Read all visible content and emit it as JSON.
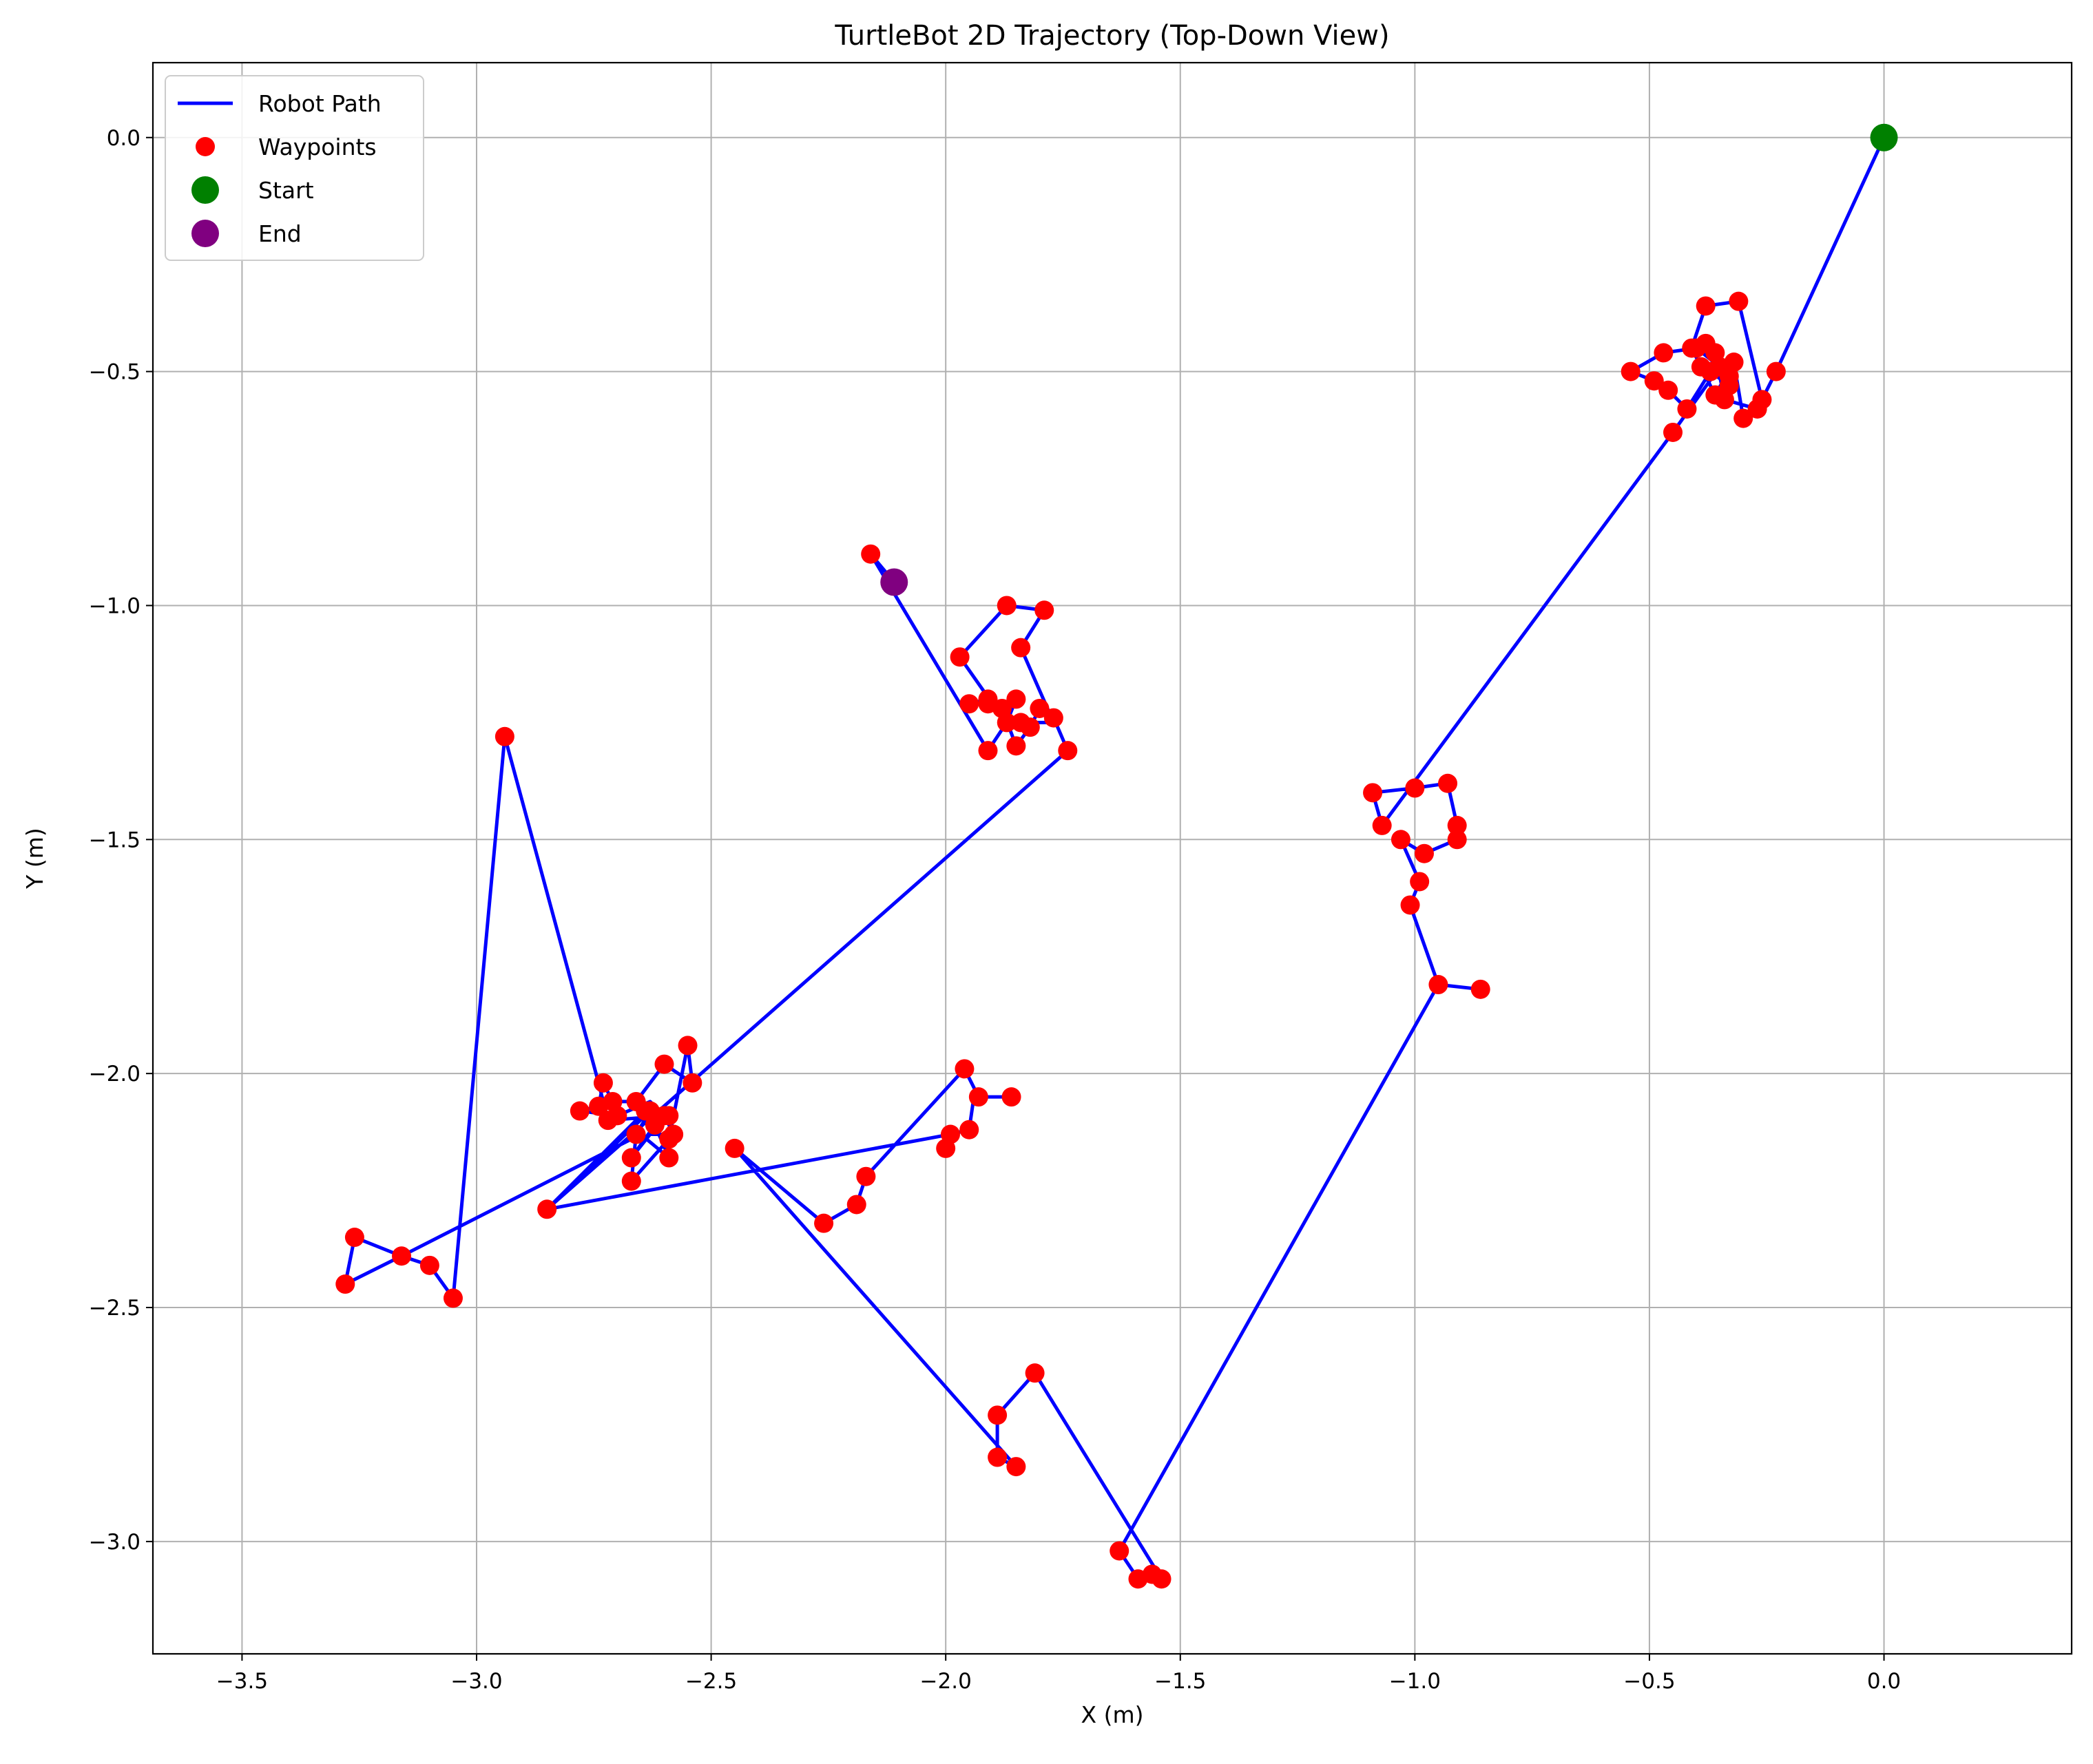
{
  "chart_data": {
    "type": "scatter",
    "title": "TurtleBot 2D Trajectory (Top-Down View)",
    "xlabel": "X (m)",
    "ylabel": "Y (m)",
    "xlim": [
      -3.69,
      0.4
    ],
    "ylim": [
      -3.24,
      0.16
    ],
    "xticks": [
      -3.5,
      -3.0,
      -2.5,
      -2.0,
      -1.5,
      -1.0,
      -0.5,
      0.0
    ],
    "yticks": [
      0.0,
      -0.5,
      -1.0,
      -1.5,
      -2.0,
      -2.5,
      -3.0
    ],
    "xtick_labels": [
      "−3.5",
      "−3.0",
      "−2.5",
      "−2.0",
      "−1.5",
      "−1.0",
      "−0.5",
      "0.0"
    ],
    "ytick_labels": [
      "0.0",
      "−0.5",
      "−1.0",
      "−1.5",
      "−2.0",
      "−2.5",
      "−3.0"
    ],
    "grid": true,
    "legend_position": "top-left",
    "legend": [
      "Robot Path",
      "Waypoints",
      "Start",
      "End"
    ],
    "colors": {
      "path": "#0000ff",
      "waypoints": "#ff0000",
      "start": "#008000",
      "end": "#800080"
    },
    "series": [
      {
        "name": "Robot Path",
        "type": "line",
        "points": [
          [
            0.0,
            0.0
          ],
          [
            -0.23,
            -0.5
          ],
          [
            -0.26,
            -0.56
          ],
          [
            -0.31,
            -0.35
          ],
          [
            -0.38,
            -0.36
          ],
          [
            -0.41,
            -0.45
          ],
          [
            -0.36,
            -0.55
          ],
          [
            -0.32,
            -0.48
          ],
          [
            -0.3,
            -0.6
          ],
          [
            -0.27,
            -0.58
          ],
          [
            -0.34,
            -0.56
          ],
          [
            -0.36,
            -0.46
          ],
          [
            -0.38,
            -0.44
          ],
          [
            -0.33,
            -0.53
          ],
          [
            -0.37,
            -0.5
          ],
          [
            -0.42,
            -0.58
          ],
          [
            -0.46,
            -0.54
          ],
          [
            -0.49,
            -0.52
          ],
          [
            -0.54,
            -0.5
          ],
          [
            -0.47,
            -0.46
          ],
          [
            -0.4,
            -0.45
          ],
          [
            -0.35,
            -0.49
          ],
          [
            -0.45,
            -0.63
          ],
          [
            -1.07,
            -1.47
          ],
          [
            -1.09,
            -1.4
          ],
          [
            -1.0,
            -1.39
          ],
          [
            -0.93,
            -1.38
          ],
          [
            -0.91,
            -1.47
          ],
          [
            -0.91,
            -1.5
          ],
          [
            -0.98,
            -1.53
          ],
          [
            -1.03,
            -1.5
          ],
          [
            -0.99,
            -1.59
          ],
          [
            -1.01,
            -1.64
          ],
          [
            -0.95,
            -1.81
          ],
          [
            -0.86,
            -1.82
          ],
          [
            -0.95,
            -1.81
          ],
          [
            -1.63,
            -3.02
          ],
          [
            -1.59,
            -3.08
          ],
          [
            -1.56,
            -3.07
          ],
          [
            -1.54,
            -3.08
          ],
          [
            -1.81,
            -2.64
          ],
          [
            -1.89,
            -2.73
          ],
          [
            -1.89,
            -2.82
          ],
          [
            -1.85,
            -2.84
          ],
          [
            -2.45,
            -2.16
          ],
          [
            -2.26,
            -2.32
          ],
          [
            -2.19,
            -2.28
          ],
          [
            -2.17,
            -2.22
          ],
          [
            -1.96,
            -1.99
          ],
          [
            -1.93,
            -2.05
          ],
          [
            -1.86,
            -2.05
          ],
          [
            -1.94,
            -2.05
          ],
          [
            -1.95,
            -2.12
          ],
          [
            -1.99,
            -2.13
          ],
          [
            -2.0,
            -2.16
          ],
          [
            -1.99,
            -2.13
          ],
          [
            -2.85,
            -2.29
          ],
          [
            -2.63,
            -2.08
          ],
          [
            -2.66,
            -2.13
          ],
          [
            -2.67,
            -2.23
          ],
          [
            -2.59,
            -2.14
          ],
          [
            -2.55,
            -1.94
          ],
          [
            -2.54,
            -2.02
          ],
          [
            -2.6,
            -1.98
          ],
          [
            -2.66,
            -2.06
          ],
          [
            -2.71,
            -2.06
          ],
          [
            -2.73,
            -2.02
          ],
          [
            -2.74,
            -2.07
          ],
          [
            -2.78,
            -2.08
          ],
          [
            -2.7,
            -2.09
          ],
          [
            -2.63,
            -2.06
          ],
          [
            -2.6,
            -2.09
          ],
          [
            -2.58,
            -2.13
          ],
          [
            -2.63,
            -2.13
          ],
          [
            -2.67,
            -2.18
          ],
          [
            -2.62,
            -2.11
          ],
          [
            -2.59,
            -2.18
          ],
          [
            -2.65,
            -2.13
          ],
          [
            -3.16,
            -2.39
          ],
          [
            -3.1,
            -2.41
          ],
          [
            -3.16,
            -2.39
          ],
          [
            -3.28,
            -2.45
          ],
          [
            -3.26,
            -2.35
          ],
          [
            -3.16,
            -2.39
          ],
          [
            -3.1,
            -2.41
          ],
          [
            -3.05,
            -2.48
          ],
          [
            -2.94,
            -1.28
          ],
          [
            -2.74,
            -2.02
          ],
          [
            -2.72,
            -2.1
          ],
          [
            -2.59,
            -2.09
          ],
          [
            -2.64,
            -2.08
          ],
          [
            -2.85,
            -2.29
          ],
          [
            -1.74,
            -1.31
          ],
          [
            -1.77,
            -1.24
          ],
          [
            -1.8,
            -1.22
          ],
          [
            -1.82,
            -1.26
          ],
          [
            -1.85,
            -1.3
          ],
          [
            -1.88,
            -1.22
          ],
          [
            -1.85,
            -1.2
          ],
          [
            -1.87,
            -1.25
          ],
          [
            -1.91,
            -1.21
          ],
          [
            -1.95,
            -1.21
          ],
          [
            -1.91,
            -1.2
          ],
          [
            -1.87,
            -1.24
          ],
          [
            -1.84,
            -1.25
          ],
          [
            -1.77,
            -1.25
          ],
          [
            -1.84,
            -1.09
          ],
          [
            -1.79,
            -1.01
          ],
          [
            -1.87,
            -1.0
          ],
          [
            -1.97,
            -1.11
          ],
          [
            -1.9,
            -1.21
          ],
          [
            -1.87,
            -1.25
          ],
          [
            -1.91,
            -1.31
          ],
          [
            -2.16,
            -0.89
          ],
          [
            -2.11,
            -0.95
          ]
        ]
      },
      {
        "name": "Waypoints",
        "type": "scatter",
        "points": [
          [
            -0.23,
            -0.5
          ],
          [
            -0.26,
            -0.56
          ],
          [
            -0.31,
            -0.35
          ],
          [
            -0.38,
            -0.36
          ],
          [
            -0.41,
            -0.45
          ],
          [
            -0.36,
            -0.55
          ],
          [
            -0.32,
            -0.48
          ],
          [
            -0.3,
            -0.6
          ],
          [
            -0.27,
            -0.58
          ],
          [
            -0.34,
            -0.56
          ],
          [
            -0.36,
            -0.46
          ],
          [
            -0.38,
            -0.44
          ],
          [
            -0.33,
            -0.53
          ],
          [
            -0.37,
            -0.5
          ],
          [
            -0.42,
            -0.58
          ],
          [
            -0.46,
            -0.54
          ],
          [
            -0.49,
            -0.52
          ],
          [
            -0.54,
            -0.5
          ],
          [
            -0.47,
            -0.46
          ],
          [
            -0.4,
            -0.45
          ],
          [
            -0.35,
            -0.49
          ],
          [
            -0.45,
            -0.63
          ],
          [
            -0.33,
            -0.51
          ],
          [
            -0.39,
            -0.49
          ],
          [
            -1.07,
            -1.47
          ],
          [
            -1.09,
            -1.4
          ],
          [
            -1.0,
            -1.39
          ],
          [
            -0.93,
            -1.38
          ],
          [
            -0.91,
            -1.47
          ],
          [
            -0.91,
            -1.5
          ],
          [
            -0.98,
            -1.53
          ],
          [
            -1.03,
            -1.5
          ],
          [
            -0.99,
            -1.59
          ],
          [
            -1.01,
            -1.64
          ],
          [
            -0.95,
            -1.81
          ],
          [
            -0.86,
            -1.82
          ],
          [
            -1.63,
            -3.02
          ],
          [
            -1.59,
            -3.08
          ],
          [
            -1.56,
            -3.07
          ],
          [
            -1.54,
            -3.08
          ],
          [
            -1.81,
            -2.64
          ],
          [
            -1.89,
            -2.73
          ],
          [
            -1.89,
            -2.82
          ],
          [
            -1.85,
            -2.84
          ],
          [
            -2.45,
            -2.16
          ],
          [
            -2.26,
            -2.32
          ],
          [
            -2.19,
            -2.28
          ],
          [
            -2.17,
            -2.22
          ],
          [
            -1.96,
            -1.99
          ],
          [
            -1.93,
            -2.05
          ],
          [
            -1.86,
            -2.05
          ],
          [
            -1.95,
            -2.12
          ],
          [
            -1.99,
            -2.13
          ],
          [
            -2.0,
            -2.16
          ],
          [
            -2.85,
            -2.29
          ],
          [
            -2.63,
            -2.08
          ],
          [
            -2.66,
            -2.13
          ],
          [
            -2.67,
            -2.23
          ],
          [
            -2.59,
            -2.14
          ],
          [
            -2.55,
            -1.94
          ],
          [
            -2.54,
            -2.02
          ],
          [
            -2.6,
            -1.98
          ],
          [
            -2.66,
            -2.06
          ],
          [
            -2.71,
            -2.06
          ],
          [
            -2.73,
            -2.02
          ],
          [
            -2.74,
            -2.07
          ],
          [
            -2.78,
            -2.08
          ],
          [
            -2.7,
            -2.09
          ],
          [
            -2.6,
            -2.09
          ],
          [
            -2.58,
            -2.13
          ],
          [
            -2.67,
            -2.18
          ],
          [
            -2.62,
            -2.11
          ],
          [
            -2.59,
            -2.18
          ],
          [
            -2.72,
            -2.1
          ],
          [
            -2.59,
            -2.09
          ],
          [
            -2.64,
            -2.08
          ],
          [
            -3.16,
            -2.39
          ],
          [
            -3.1,
            -2.41
          ],
          [
            -3.28,
            -2.45
          ],
          [
            -3.26,
            -2.35
          ],
          [
            -3.05,
            -2.48
          ],
          [
            -2.94,
            -1.28
          ],
          [
            -1.74,
            -1.31
          ],
          [
            -1.77,
            -1.24
          ],
          [
            -1.8,
            -1.22
          ],
          [
            -1.82,
            -1.26
          ],
          [
            -1.85,
            -1.3
          ],
          [
            -1.88,
            -1.22
          ],
          [
            -1.85,
            -1.2
          ],
          [
            -1.87,
            -1.25
          ],
          [
            -1.91,
            -1.21
          ],
          [
            -1.95,
            -1.21
          ],
          [
            -1.91,
            -1.2
          ],
          [
            -1.84,
            -1.25
          ],
          [
            -1.84,
            -1.09
          ],
          [
            -1.79,
            -1.01
          ],
          [
            -1.87,
            -1.0
          ],
          [
            -1.97,
            -1.11
          ],
          [
            -1.91,
            -1.31
          ],
          [
            -2.16,
            -0.89
          ]
        ]
      },
      {
        "name": "Start",
        "type": "scatter",
        "points": [
          [
            0.0,
            0.0
          ]
        ]
      },
      {
        "name": "End",
        "type": "scatter",
        "points": [
          [
            -2.11,
            -0.95
          ]
        ]
      }
    ]
  }
}
